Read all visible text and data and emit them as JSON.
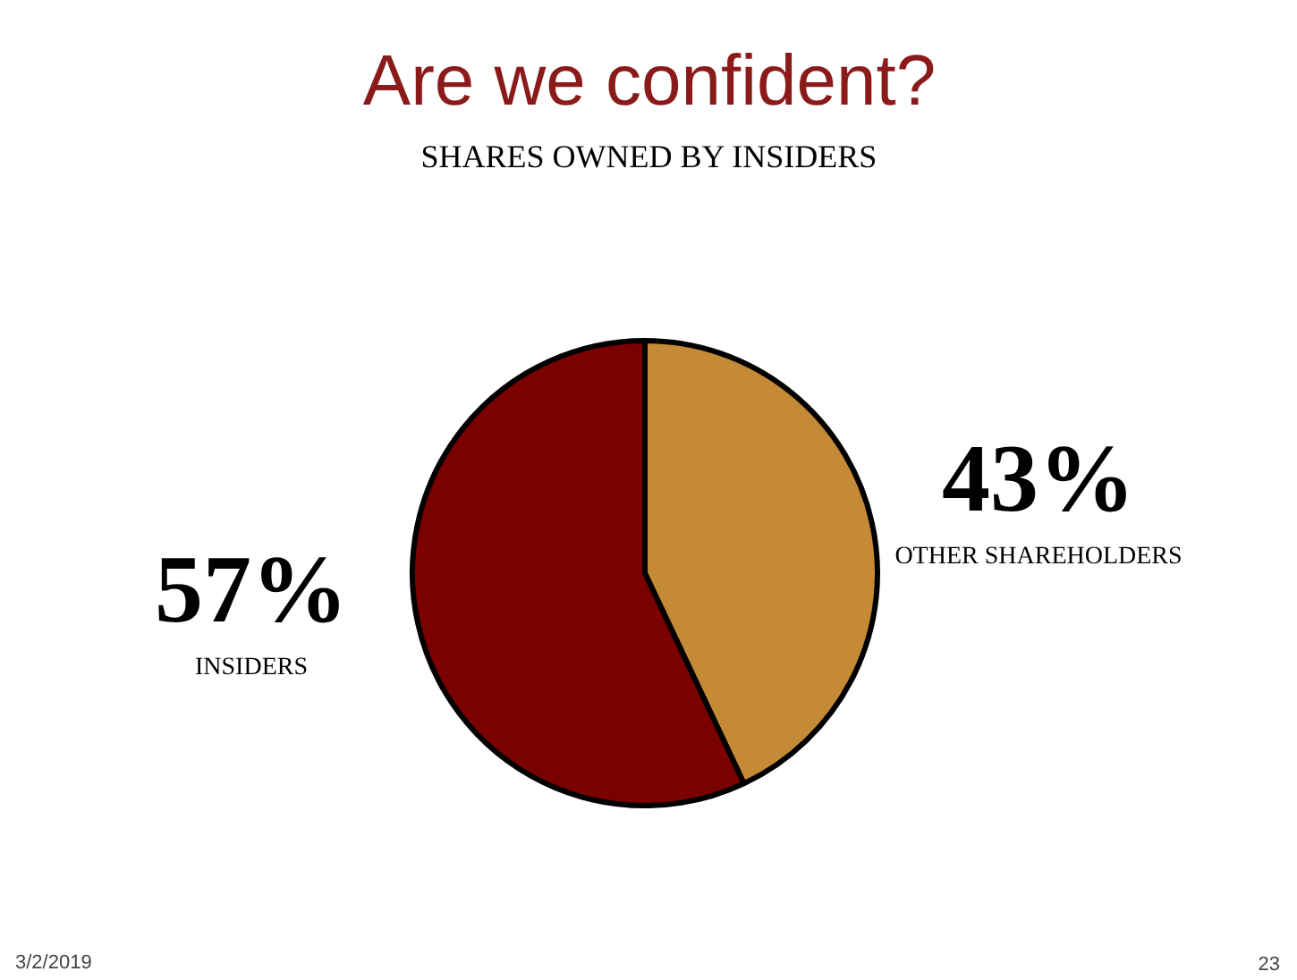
{
  "chart_data": {
    "type": "pie",
    "title": "Are we confident?",
    "subtitle": "SHARES OWNED BY INSIDERS",
    "categories": [
      "OTHER SHAREHOLDERS",
      "INSIDERS"
    ],
    "values": [
      43,
      57
    ],
    "colors": [
      "#c48a35",
      "#7b0000"
    ],
    "value_labels": [
      "43%",
      "57%"
    ],
    "annotations": [
      "3/2/2019",
      "23"
    ]
  }
}
